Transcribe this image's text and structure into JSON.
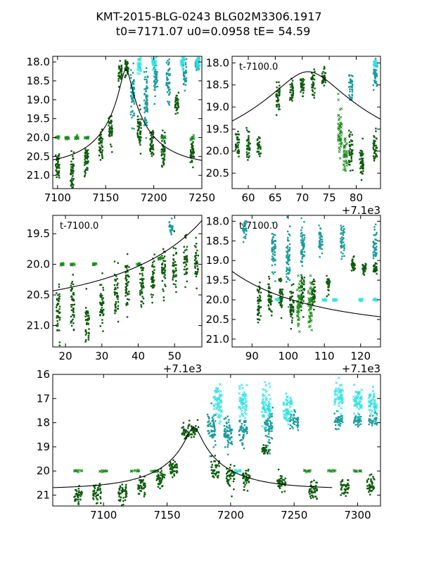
{
  "title": {
    "line1": "KMT-2015-BLG-0243 BLG02M3306.1917",
    "line2": "t0=7171.07 u0=0.0958 tE=  54.59"
  },
  "colors": {
    "dark_green": "#0b5a0b",
    "green": "#1a8a1a",
    "teal": "#1a9a9a",
    "cyan": "#33e0e0",
    "model": "#000000"
  },
  "chart_data": [
    {
      "type": "scatter",
      "panel": "top-left",
      "xlim": [
        7095,
        7250
      ],
      "ylim": [
        21.35,
        17.85
      ],
      "y_inverted": true,
      "xticks": [
        7100,
        7150,
        7200,
        7250
      ],
      "xtick_labels": [
        "7100",
        "7150",
        "7200",
        "7250"
      ],
      "yticks": [
        18.0,
        18.5,
        19.0,
        19.5,
        20.0,
        20.5,
        21.0
      ],
      "ytick_labels": [
        "18.0",
        "18.5",
        "19.0",
        "19.5",
        "20.0",
        "20.5",
        "21.0"
      ],
      "annotation": "",
      "offset_label": "",
      "model": {
        "t0": 7171.07,
        "u0": 0.0958,
        "tE": 54.59,
        "baseline": 20.75,
        "x_range": [
          7095,
          7250
        ]
      },
      "series": [
        {
          "color_key": "dark_green",
          "clusters": [
            [
              7100,
              20.8,
              0.45
            ],
            [
              7115,
              20.9,
              0.5
            ],
            [
              7130,
              20.6,
              0.45
            ],
            [
              7145,
              20.2,
              0.4
            ],
            [
              7155,
              19.8,
              0.45
            ],
            [
              7165,
              18.3,
              0.3
            ],
            [
              7172,
              18.1,
              0.25
            ],
            [
              7185,
              19.8,
              0.5
            ],
            [
              7198,
              20.1,
              0.5
            ],
            [
              7210,
              20.3,
              0.45
            ],
            [
              7224,
              19.1,
              0.25
            ],
            [
              7240,
              20.4,
              0.45
            ]
          ]
        },
        {
          "color_key": "green",
          "clusters": [
            [
              7100,
              20.0,
              0.05
            ],
            [
              7110,
              20.0,
              0.05
            ],
            [
              7120,
              20.0,
              0.05
            ],
            [
              7130,
              20.0,
              0.05
            ],
            [
              7210,
              20.0,
              0.05
            ],
            [
              7240,
              20.0,
              0.05
            ]
          ]
        },
        {
          "color_key": "teal",
          "clusters": [
            [
              7178,
              18.9,
              0.8
            ],
            [
              7192,
              19.0,
              0.9
            ],
            [
              7202,
              18.4,
              0.5
            ],
            [
              7215,
              18.5,
              0.6
            ],
            [
              7232,
              18.3,
              0.4
            ],
            [
              7245,
              18.1,
              0.25
            ]
          ]
        },
        {
          "color_key": "cyan",
          "clusters": [
            [
              7185,
              18.1,
              0.3
            ],
            [
              7200,
              18.0,
              0.25
            ],
            [
              7230,
              18.0,
              0.2
            ],
            [
              7246,
              18.0,
              0.2
            ]
          ]
        }
      ]
    },
    {
      "type": "scatter",
      "panel": "top-right",
      "xlim": [
        57.0,
        84.5
      ],
      "ylim": [
        20.85,
        17.85
      ],
      "y_inverted": true,
      "xticks": [
        60,
        65,
        70,
        75,
        80
      ],
      "xtick_labels": [
        "60",
        "65",
        "70",
        "75",
        "80"
      ],
      "yticks": [
        18.0,
        18.5,
        19.0,
        19.5,
        20.0,
        20.5
      ],
      "ytick_labels": [
        "18.0",
        "18.5",
        "19.0",
        "19.5",
        "20.0",
        "20.5"
      ],
      "annotation": "t-7100.0",
      "offset_label": "+7.1e3",
      "model": {
        "t0": 71.07,
        "u0": 0.0958,
        "tE": 54.59,
        "baseline": 20.75,
        "x_range": [
          57,
          84.5
        ]
      },
      "series": [
        {
          "color_key": "dark_green",
          "clusters": [
            [
              58,
              19.8,
              0.4
            ],
            [
              60,
              19.8,
              0.4
            ],
            [
              62,
              19.9,
              0.3
            ],
            [
              65.5,
              18.8,
              0.4
            ],
            [
              68,
              18.6,
              0.3
            ],
            [
              70,
              18.5,
              0.25
            ],
            [
              72,
              18.5,
              0.3
            ],
            [
              74,
              18.3,
              0.25
            ],
            [
              79,
              20.0,
              0.45
            ],
            [
              81,
              20.2,
              0.45
            ],
            [
              83.5,
              19.9,
              0.35
            ]
          ]
        },
        {
          "color_key": "green",
          "clusters": [
            [
              77,
              19.6,
              0.6
            ],
            [
              78,
              20.1,
              0.4
            ]
          ]
        },
        {
          "color_key": "teal",
          "clusters": [
            [
              83.5,
              18.3,
              0.3
            ],
            [
              79,
              18.5,
              0.4
            ]
          ]
        },
        {
          "color_key": "cyan",
          "clusters": [
            [
              83.6,
              18.0,
              0.1
            ]
          ]
        }
      ]
    },
    {
      "type": "scatter",
      "panel": "middle-left",
      "xlim": [
        16.5,
        57.5
      ],
      "ylim": [
        21.35,
        19.2
      ],
      "y_inverted": true,
      "xticks": [
        20,
        30,
        40,
        50
      ],
      "xtick_labels": [
        "20",
        "30",
        "40",
        "50"
      ],
      "yticks": [
        19.5,
        20.0,
        20.5,
        21.0
      ],
      "ytick_labels": [
        "19.5",
        "20.0",
        "20.5",
        "21.0"
      ],
      "annotation": "t-7100.0",
      "offset_label": "+7.1e3",
      "model": {
        "t0": 71.07,
        "u0": 0.0958,
        "tE": 54.59,
        "baseline": 20.75,
        "x_range": [
          16.5,
          57.5
        ]
      },
      "series": [
        {
          "color_key": "dark_green",
          "clusters": [
            [
              18,
              20.8,
              0.45
            ],
            [
              22,
              20.7,
              0.5
            ],
            [
              26,
              20.9,
              0.45
            ],
            [
              30,
              20.6,
              0.5
            ],
            [
              34,
              20.5,
              0.5
            ],
            [
              37,
              20.3,
              0.5
            ],
            [
              41,
              20.3,
              0.45
            ],
            [
              44,
              20.2,
              0.45
            ],
            [
              47,
              20.1,
              0.45
            ],
            [
              50,
              20.0,
              0.4
            ],
            [
              53,
              19.9,
              0.4
            ],
            [
              56,
              19.9,
              0.35
            ]
          ]
        },
        {
          "color_key": "green",
          "clusters": [
            [
              19,
              20.0,
              0.03
            ],
            [
              22,
              20.0,
              0.03
            ],
            [
              28,
              20.0,
              0.03
            ],
            [
              40,
              20.0,
              0.03
            ],
            [
              46,
              19.9,
              0.03
            ]
          ]
        },
        {
          "color_key": "teal",
          "clusters": [
            [
              49,
              19.4,
              0.1
            ]
          ]
        },
        {
          "color_key": "cyan",
          "clusters": []
        }
      ]
    },
    {
      "type": "scatter",
      "panel": "middle-right",
      "xlim": [
        84.5,
        125.5
      ],
      "ylim": [
        21.2,
        17.85
      ],
      "y_inverted": true,
      "xticks": [
        90,
        100,
        110,
        120
      ],
      "xtick_labels": [
        "90",
        "100",
        "110",
        "120"
      ],
      "yticks": [
        18.0,
        18.5,
        19.0,
        19.5,
        20.0,
        20.5,
        21.0
      ],
      "ytick_labels": [
        "18.0",
        "18.5",
        "19.0",
        "19.5",
        "20.0",
        "20.5",
        "21.0"
      ],
      "annotation": "t-7100.0",
      "offset_label": "+7.1e3",
      "model": {
        "t0": 71.07,
        "u0": 0.0958,
        "tE": 54.59,
        "baseline": 20.75,
        "x_range": [
          84.5,
          125.5
        ]
      },
      "series": [
        {
          "color_key": "dark_green",
          "clusters": [
            [
              92,
              20.1,
              0.5
            ],
            [
              95,
              20.0,
              0.5
            ],
            [
              98,
              19.9,
              0.5
            ],
            [
              101,
              20.2,
              0.5
            ],
            [
              104,
              19.8,
              0.5
            ],
            [
              107,
              19.9,
              0.5
            ],
            [
              111,
              19.6,
              0.25
            ],
            [
              118,
              19.1,
              0.2
            ],
            [
              121,
              19.2,
              0.2
            ],
            [
              124,
              19.2,
              0.2
            ]
          ]
        },
        {
          "color_key": "green",
          "clusters": [
            [
              103,
              20.1,
              0.6
            ],
            [
              106,
              20.2,
              0.6
            ]
          ]
        },
        {
          "color_key": "teal",
          "clusters": [
            [
              88,
              18.2,
              0.3
            ],
            [
              96,
              18.7,
              0.7
            ],
            [
              100,
              18.9,
              0.8
            ],
            [
              104,
              18.6,
              0.6
            ],
            [
              109,
              18.5,
              0.4
            ],
            [
              115,
              18.5,
              0.5
            ],
            [
              124,
              18.6,
              0.5
            ]
          ]
        },
        {
          "color_key": "cyan",
          "clusters": [
            [
              97,
              20.0,
              0.03
            ],
            [
              110,
              20.0,
              0.03
            ],
            [
              113,
              20.0,
              0.03
            ],
            [
              120,
              20.0,
              0.03
            ],
            [
              124,
              20.0,
              0.03
            ]
          ]
        }
      ]
    },
    {
      "type": "scatter",
      "panel": "bottom",
      "xlim": [
        7060,
        7318
      ],
      "ylim": [
        21.45,
        16.0
      ],
      "y_inverted": true,
      "xticks": [
        7100,
        7150,
        7200,
        7250,
        7300
      ],
      "xtick_labels": [
        "7100",
        "7150",
        "7200",
        "7250",
        "7300"
      ],
      "yticks": [
        16,
        17,
        18,
        19,
        20,
        21
      ],
      "ytick_labels": [
        "16",
        "17",
        "18",
        "19",
        "20",
        "21"
      ],
      "annotation": "",
      "offset_label": "",
      "model": {
        "t0": 7171.07,
        "u0": 0.0958,
        "tE": 54.59,
        "baseline": 20.75,
        "x_range": [
          7060,
          7280
        ]
      },
      "series": [
        {
          "color_key": "dark_green",
          "clusters": [
            [
              7080,
              21.0,
              0.35
            ],
            [
              7095,
              20.9,
              0.45
            ],
            [
              7115,
              20.9,
              0.5
            ],
            [
              7130,
              20.6,
              0.45
            ],
            [
              7145,
              20.3,
              0.45
            ],
            [
              7155,
              19.9,
              0.45
            ],
            [
              7165,
              18.4,
              0.35
            ],
            [
              7172,
              18.3,
              0.3
            ],
            [
              7188,
              19.9,
              0.5
            ],
            [
              7200,
              20.2,
              0.5
            ],
            [
              7212,
              20.3,
              0.45
            ],
            [
              7228,
              19.1,
              0.25
            ],
            [
              7240,
              20.5,
              0.4
            ],
            [
              7265,
              20.8,
              0.45
            ],
            [
              7290,
              20.7,
              0.4
            ],
            [
              7310,
              20.6,
              0.4
            ]
          ]
        },
        {
          "color_key": "green",
          "clusters": [
            [
              7080,
              20.0,
              0.05
            ],
            [
              7100,
              20.0,
              0.05
            ],
            [
              7125,
              20.0,
              0.05
            ],
            [
              7140,
              20.0,
              0.05
            ],
            [
              7260,
              20.0,
              0.05
            ],
            [
              7280,
              20.0,
              0.05
            ],
            [
              7300,
              20.0,
              0.05
            ]
          ]
        },
        {
          "color_key": "teal",
          "clusters": [
            [
              7185,
              18.2,
              0.8
            ],
            [
              7198,
              18.4,
              0.9
            ],
            [
              7210,
              18.3,
              0.7
            ],
            [
              7230,
              18.2,
              0.8
            ],
            [
              7250,
              17.9,
              0.4
            ],
            [
              7285,
              17.9,
              0.4
            ],
            [
              7300,
              17.9,
              0.3
            ],
            [
              7312,
              17.9,
              0.3
            ]
          ]
        },
        {
          "color_key": "cyan",
          "clusters": [
            [
              7190,
              17.1,
              0.8
            ],
            [
              7210,
              17.1,
              0.7
            ],
            [
              7228,
              17.3,
              0.8
            ],
            [
              7245,
              17.5,
              0.7
            ],
            [
              7285,
              16.9,
              0.6
            ],
            [
              7300,
              17.1,
              0.6
            ],
            [
              7312,
              17.2,
              0.6
            ],
            [
              7205,
              20.0,
              0.05
            ]
          ]
        }
      ]
    }
  ]
}
